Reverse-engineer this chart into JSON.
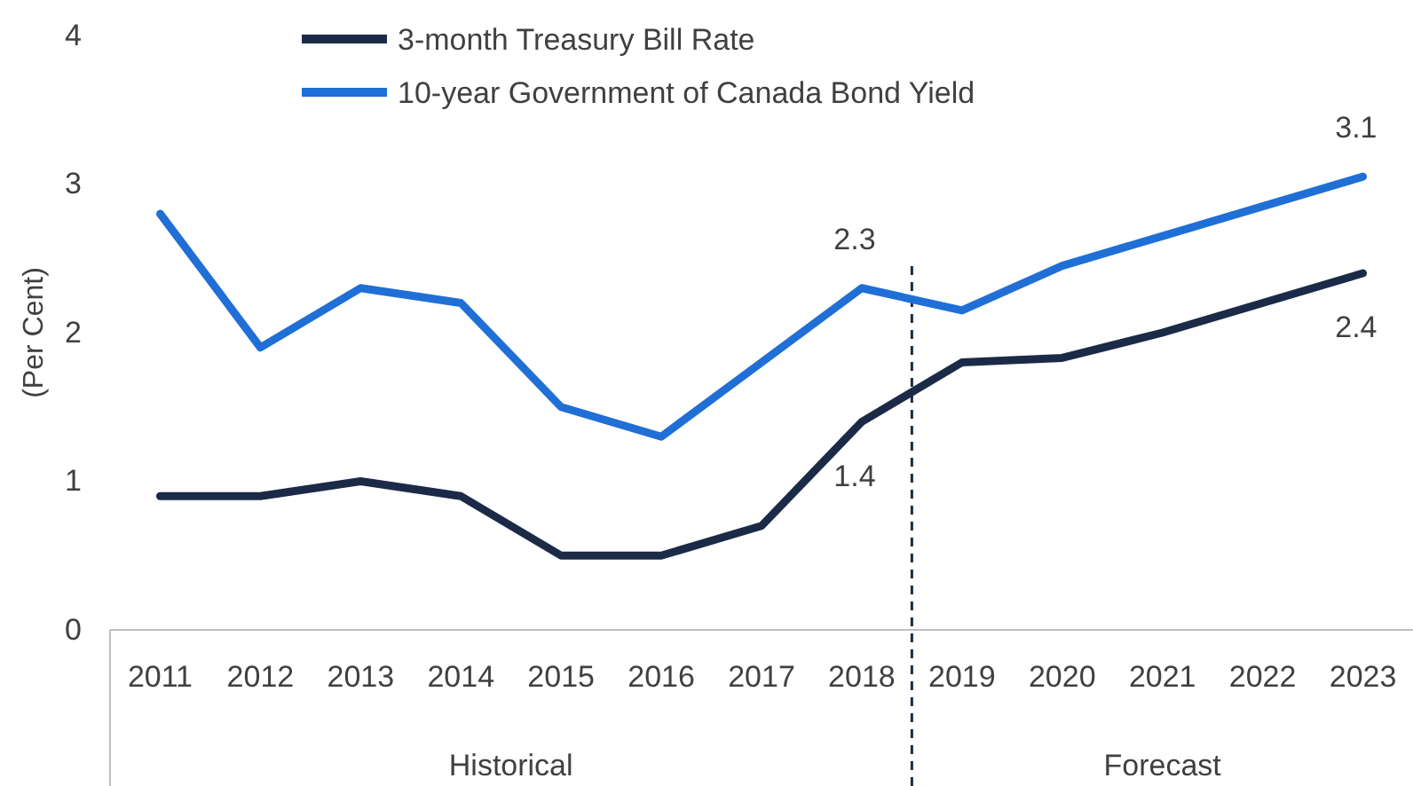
{
  "chart_data": {
    "type": "line",
    "ylabel": "(Per Cent)",
    "x": [
      2011,
      2012,
      2013,
      2014,
      2015,
      2016,
      2017,
      2018,
      2019,
      2020,
      2021,
      2022,
      2023
    ],
    "xlim": [
      2010.5,
      2023.5
    ],
    "xticks": [
      2011,
      2012,
      2013,
      2014,
      2015,
      2016,
      2017,
      2018,
      2019,
      2020,
      2021,
      2022,
      2023
    ],
    "ylim": [
      0,
      4
    ],
    "yticks": [
      0,
      1,
      2,
      3,
      4
    ],
    "grid": false,
    "legend": "top left",
    "marker": "none",
    "line_style": "solid",
    "series": [
      {
        "name": "3-month Treasury Bill Rate",
        "color": "#1b2a47",
        "values": [
          0.9,
          0.9,
          1.0,
          0.9,
          0.5,
          0.5,
          0.7,
          1.4,
          1.8,
          1.83,
          2.0,
          2.2,
          2.4
        ],
        "value_labels": [
          null,
          null,
          null,
          null,
          null,
          null,
          null,
          "1.4",
          null,
          null,
          null,
          null,
          "2.4"
        ]
      },
      {
        "name": "10-year Government of Canada Bond Yield",
        "color": "#1f6fd6",
        "values": [
          2.8,
          1.9,
          2.3,
          2.2,
          1.5,
          1.3,
          1.8,
          2.3,
          2.15,
          2.45,
          2.65,
          2.85,
          3.05
        ],
        "value_labels": [
          null,
          null,
          null,
          null,
          null,
          null,
          null,
          "2.3",
          null,
          null,
          null,
          null,
          "3.1"
        ]
      }
    ],
    "ref_lines": [
      {
        "axis": "x",
        "value": 2018.5,
        "label": null,
        "line_style": "dashed",
        "color": "#1b2a47"
      }
    ],
    "annotations": [
      "Historical",
      "Forecast"
    ]
  }
}
